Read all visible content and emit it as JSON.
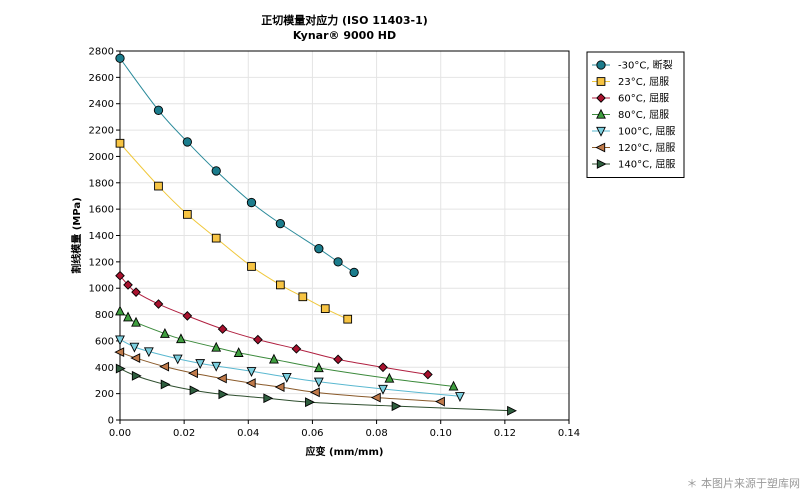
{
  "chart_data": {
    "type": "line",
    "title": "正切模量对应力 (ISO 11403-1)",
    "subtitle": "Kynar® 9000 HD",
    "xlabel": "应变 (mm/mm)",
    "ylabel": "割线模量 (MPa)",
    "xlim": [
      0,
      0.14
    ],
    "ylim": [
      0,
      2800
    ],
    "xticks": [
      0,
      0.02,
      0.04,
      0.06,
      0.08,
      0.1,
      0.12,
      0.14
    ],
    "xtick_labels": [
      "0.00",
      "0.02",
      "0.04",
      "0.06",
      "0.08",
      "0.10",
      "0.12",
      "0.14"
    ],
    "yticks": [
      0,
      200,
      400,
      600,
      800,
      1000,
      1200,
      1400,
      1600,
      1800,
      2000,
      2200,
      2400,
      2600,
      2800
    ],
    "ytick_labels": [
      "0",
      "200",
      "400",
      "600",
      "800",
      "1000",
      "1200",
      "1400",
      "1600",
      "1800",
      "2000",
      "2200",
      "2400",
      "2600",
      "2800"
    ],
    "grid": true,
    "legend_position": "right",
    "series": [
      {
        "name": "-30°C, 断裂",
        "marker": "circle",
        "line_color": "#2a8a9a",
        "marker_fill": "#1b7c8c",
        "x": [
          0.0,
          0.012,
          0.021,
          0.03,
          0.041,
          0.05,
          0.062,
          0.068,
          0.073
        ],
        "y": [
          2745,
          2350,
          2110,
          1890,
          1650,
          1490,
          1300,
          1200,
          1120
        ]
      },
      {
        "name": "23°C, 屈服",
        "marker": "square",
        "line_color": "#f0c83c",
        "marker_fill": "#f7c443",
        "x": [
          0.0,
          0.012,
          0.021,
          0.03,
          0.041,
          0.05,
          0.057,
          0.064,
          0.071
        ],
        "y": [
          2100,
          1775,
          1560,
          1380,
          1165,
          1025,
          935,
          845,
          765
        ]
      },
      {
        "name": "60°C, 屈服",
        "marker": "diamond",
        "line_color": "#b02040",
        "marker_fill": "#a8122e",
        "x": [
          0.0,
          0.0025,
          0.005,
          0.012,
          0.021,
          0.032,
          0.043,
          0.055,
          0.068,
          0.082,
          0.096
        ],
        "y": [
          1095,
          1025,
          970,
          880,
          790,
          690,
          610,
          540,
          460,
          400,
          345
        ]
      },
      {
        "name": "80°C, 屈服",
        "marker": "triangle-up",
        "line_color": "#3c8a3c",
        "marker_fill": "#3f9e3f",
        "x": [
          0.0,
          0.0025,
          0.005,
          0.014,
          0.019,
          0.03,
          0.037,
          0.048,
          0.062,
          0.084,
          0.104
        ],
        "y": [
          825,
          780,
          740,
          655,
          615,
          550,
          510,
          460,
          395,
          315,
          255
        ]
      },
      {
        "name": "100°C, 屈服",
        "marker": "triangle-down",
        "line_color": "#5ab8d0",
        "marker_fill": "#7cd0e0",
        "x": [
          0.0,
          0.0045,
          0.009,
          0.018,
          0.025,
          0.03,
          0.041,
          0.052,
          0.062,
          0.082,
          0.106
        ],
        "y": [
          610,
          555,
          520,
          465,
          430,
          410,
          370,
          325,
          290,
          235,
          180
        ]
      },
      {
        "name": "120°C, 屈服",
        "marker": "triangle-left",
        "line_color": "#8a5a2a",
        "marker_fill": "#c07a4a",
        "x": [
          0.0,
          0.005,
          0.014,
          0.023,
          0.032,
          0.041,
          0.05,
          0.061,
          0.08,
          0.1
        ],
        "y": [
          515,
          470,
          405,
          355,
          315,
          280,
          250,
          210,
          170,
          140
        ]
      },
      {
        "name": "140°C, 屈服",
        "marker": "triangle-right",
        "line_color": "#2e4e2e",
        "marker_fill": "#2e5e3e",
        "x": [
          0.0,
          0.005,
          0.014,
          0.023,
          0.032,
          0.046,
          0.059,
          0.086,
          0.122
        ],
        "y": [
          390,
          335,
          270,
          225,
          195,
          165,
          135,
          105,
          70
        ]
      }
    ]
  },
  "watermark": "＊ 本图片来源于塑库网"
}
